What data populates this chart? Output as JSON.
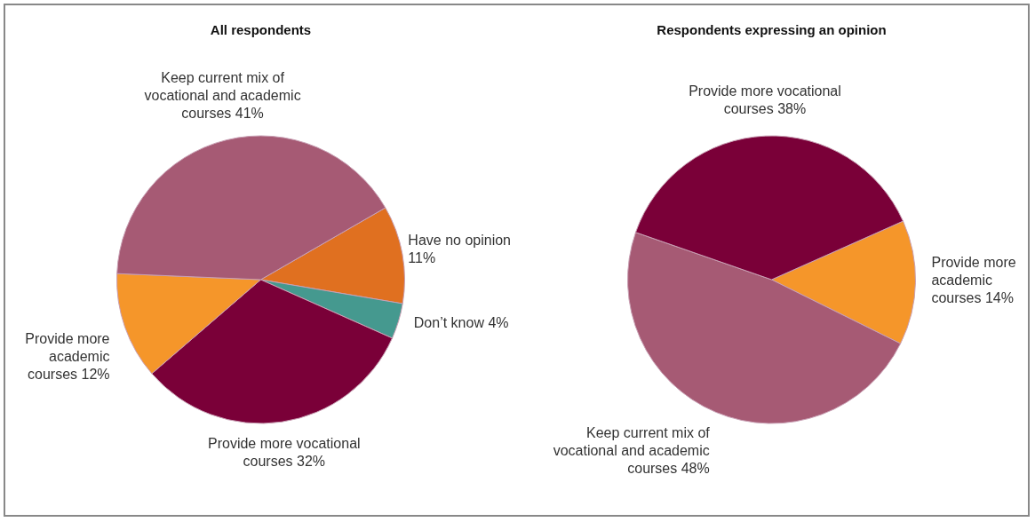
{
  "chart_data": [
    {
      "type": "pie",
      "title": "All respondents",
      "categories": [
        "Have no opinion",
        "Don’t know",
        "Provide more vocational courses",
        "Provide more academic courses",
        "Keep current mix of vocational and academic courses"
      ],
      "values": [
        11,
        4,
        32,
        12,
        41
      ],
      "value_labels": [
        "11%",
        "4%",
        "32%",
        "12%",
        "41%"
      ],
      "colors": [
        "#e07020",
        "#45998f",
        "#7a0038",
        "#f5962a",
        "#a65a74"
      ]
    },
    {
      "type": "pie",
      "title": "Respondents expressing an opinion",
      "categories": [
        "Provide more academic courses",
        "Keep current mix of vocational and academic courses",
        "Provide more vocational courses"
      ],
      "values": [
        14,
        48,
        38
      ],
      "value_labels": [
        "14%",
        "48%",
        "38%"
      ],
      "colors": [
        "#f5962a",
        "#a65a74",
        "#7a0038"
      ]
    }
  ]
}
